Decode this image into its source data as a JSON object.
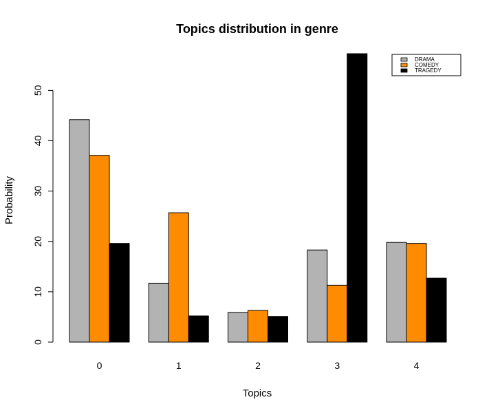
{
  "chart_data": {
    "type": "bar",
    "title": "Topics distribution in genre",
    "xlabel": "Topics",
    "ylabel": "Probability",
    "categories": [
      "0",
      "1",
      "2",
      "3",
      "4"
    ],
    "series": [
      {
        "name": "DRAMA",
        "color": "#b3b3b3",
        "values": [
          44.2,
          11.7,
          5.9,
          18.3,
          19.8
        ]
      },
      {
        "name": "COMEDY",
        "color": "#ff8c00",
        "values": [
          37.1,
          25.7,
          6.3,
          11.3,
          19.6
        ]
      },
      {
        "name": "TRAGEDY",
        "color": "#000000",
        "values": [
          19.6,
          5.2,
          5.1,
          57.3,
          12.7
        ]
      }
    ],
    "ylim": [
      0,
      57.3
    ],
    "yticks": [
      "0",
      "10",
      "20",
      "30",
      "40",
      "50"
    ],
    "grid": false,
    "legend_position": "top-right"
  }
}
